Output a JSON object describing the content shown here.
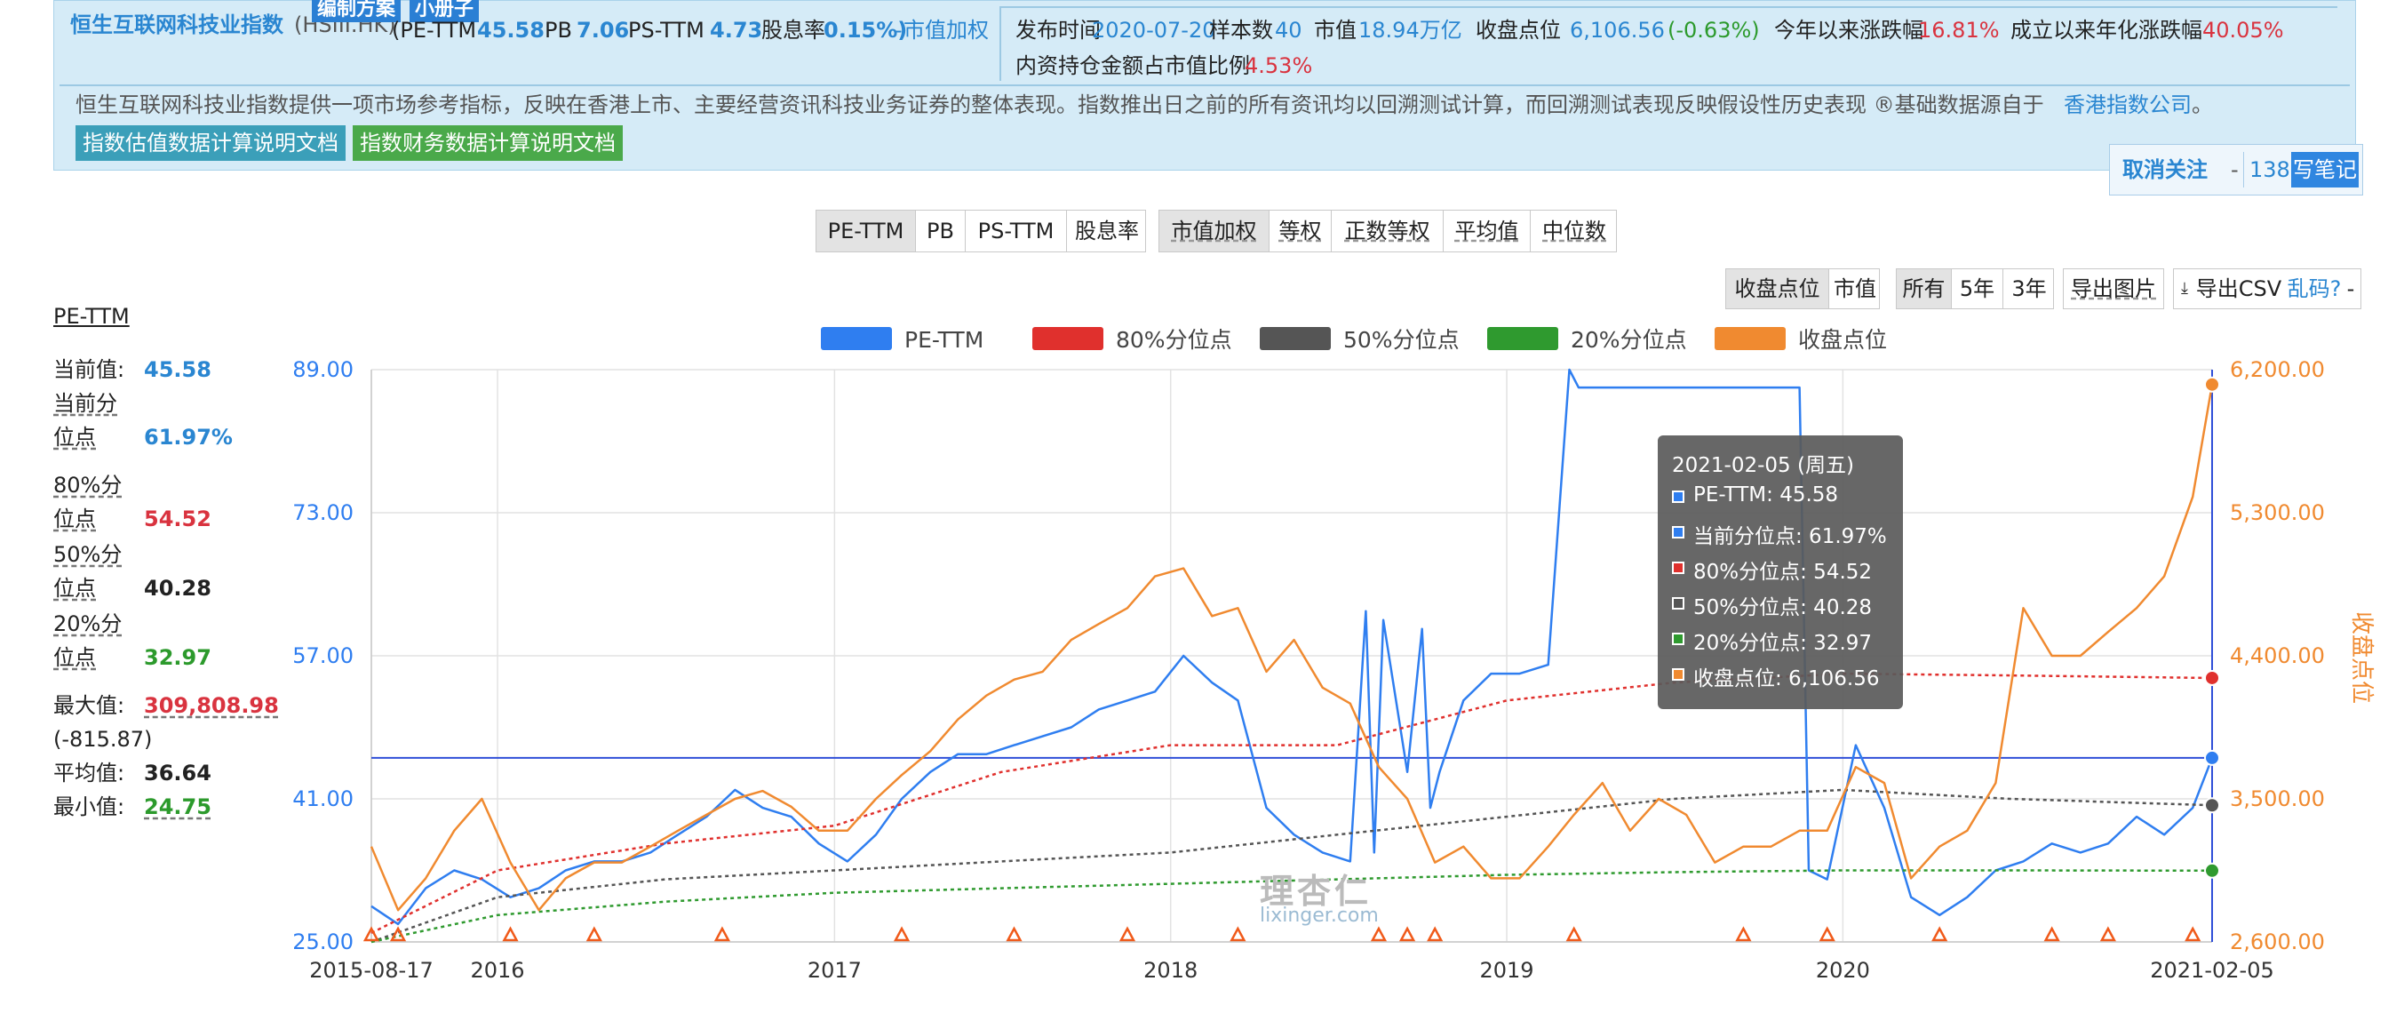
{
  "header": {
    "index_name": "恒生互联网科技业指数",
    "code": "(HSIII.HK)",
    "badge_plan": "编制方案",
    "badge_book": "小册子",
    "pe_label": "(PE-TTM",
    "pe_value": "45.58",
    "pb_label": "PB",
    "pb_value": "7.06",
    "ps_label": "PS-TTM",
    "ps_value": "4.73",
    "div_label": "股息率",
    "div_value": "0.15%)",
    "weight_sep": "-",
    "weight_link": "市值加权",
    "publish_label": "发布时间",
    "publish_value": "2020-07-20",
    "sample_label": "样本数",
    "sample_value": "40",
    "mcap_label": "市值",
    "mcap_value": "18.94万亿",
    "close_label": "收盘点位",
    "close_value": "6,106.56",
    "close_change": "(-0.63%)",
    "ytd_label": "今年以来涨跌幅",
    "ytd_value": "16.81%",
    "annual_label": "成立以来年化涨跌幅",
    "annual_value": "40.05%",
    "southbound_label": "内资持仓金额占市值比例",
    "southbound_value": "4.53%",
    "description": "恒生互联网科技业指数提供一项市场参考指标，反映在香港上市、主要经营资讯科技业务证券的整体表现。指数推出日之前的所有资讯均以回溯测试计算，而回溯测试表现反映假设性历史表现 ®基础数据源自于",
    "source_link": "香港指数公司",
    "source_end": "。",
    "doc_valuation": "指数估值数据计算说明文档",
    "doc_financial": "指数财务数据计算说明文档"
  },
  "actions": {
    "unfollow": "取消关注",
    "dash": "-",
    "count": "138",
    "write_note": "写笔记"
  },
  "metric_tabs": [
    "PE-TTM",
    "PB",
    "PS-TTM",
    "股息率"
  ],
  "weight_tabs": [
    "市值加权",
    "等权",
    "正数等权",
    "平均值",
    "中位数"
  ],
  "display_tabs": [
    "收盘点位",
    "市值"
  ],
  "range_tabs": [
    "所有",
    "5年",
    "3年"
  ],
  "export_image": "导出图片",
  "export_csv": "导出CSV",
  "garbled": "乱码?",
  "garbled_dash": "-",
  "stats": {
    "title": "PE-TTM",
    "current_label": "当前值:",
    "current_value": "45.58",
    "pct_label_1": "当前分",
    "pct_label_2": "位点",
    "pct_value": "61.97%",
    "p80_label_1": "80%分",
    "p80_label_2": "位点",
    "p80_value": "54.52",
    "p50_label_1": "50%分",
    "p50_label_2": "位点",
    "p50_value": "40.28",
    "p20_label_1": "20%分",
    "p20_label_2": "位点",
    "p20_value": "32.97",
    "max_label": "最大值:",
    "max_value": "309,808.98",
    "max_extra": "(-815.87)",
    "avg_label": "平均值:",
    "avg_value": "36.64",
    "min_label": "最小值:",
    "min_value": "24.75"
  },
  "tooltip": {
    "date": "2021-02-05 (周五)",
    "rows": [
      "PE-TTM: 45.58",
      "当前分位点: 61.97%",
      "80%分位点: 54.52",
      "50%分位点: 40.28",
      "20%分位点: 32.97",
      "收盘点位: 6,106.56"
    ],
    "colors": [
      "#2f7ef0",
      "#2f7ef0",
      "#e0302d",
      "#555555",
      "#2f9a2f",
      "#f08a30"
    ]
  },
  "watermark": {
    "cn": "理杏仁",
    "en": "lixinger.com"
  },
  "chart_data": {
    "type": "line",
    "legend_position": "top",
    "grid": true,
    "x_ticks": [
      "2015-08-17",
      "2016",
      "2017",
      "2018",
      "2019",
      "2020",
      "2021-02-05"
    ],
    "x_range": [
      "2015-08-17",
      "2021-02-05"
    ],
    "y_left": {
      "ticks": [
        "25.00",
        "41.00",
        "57.00",
        "73.00",
        "89.00"
      ],
      "range": [
        25,
        89
      ]
    },
    "y_right": {
      "ticks": [
        "2,600.00",
        "3,500.00",
        "4,400.00",
        "5,300.00",
        "6,200.00"
      ],
      "range": [
        2600,
        6200
      ],
      "label": "收盘点位"
    },
    "series": [
      {
        "name": "PE-TTM",
        "axis": "left",
        "color": "#2f7ef0",
        "x": [
          "2015-08-17",
          "2015-09-15",
          "2015-10-15",
          "2015-11-15",
          "2015-12-15",
          "2016-01-15",
          "2016-02-15",
          "2016-03-15",
          "2016-04-15",
          "2016-05-15",
          "2016-06-15",
          "2016-07-15",
          "2016-08-15",
          "2016-09-15",
          "2016-10-15",
          "2016-11-15",
          "2016-12-15",
          "2017-01-15",
          "2017-02-15",
          "2017-03-15",
          "2017-04-15",
          "2017-05-15",
          "2017-06-15",
          "2017-07-15",
          "2017-08-15",
          "2017-09-15",
          "2017-10-15",
          "2017-11-15",
          "2017-12-15",
          "2018-01-15",
          "2018-02-15",
          "2018-03-15",
          "2018-04-15",
          "2018-05-15",
          "2018-06-15",
          "2018-07-15",
          "2018-08-01",
          "2018-08-10",
          "2018-08-20",
          "2018-09-15",
          "2018-10-01",
          "2018-10-10",
          "2018-10-20",
          "2018-11-15",
          "2018-12-15",
          "2019-01-15",
          "2019-02-15",
          "2019-03-10",
          "2019-03-20",
          "2019-04-15",
          "2019-05-15",
          "2019-06-15",
          "2019-07-15",
          "2019-08-15",
          "2019-09-15",
          "2019-10-15",
          "2019-11-15",
          "2019-11-25",
          "2019-12-15",
          "2020-01-15",
          "2020-02-15",
          "2020-03-15",
          "2020-04-15",
          "2020-05-15",
          "2020-06-15",
          "2020-07-15",
          "2020-08-15",
          "2020-09-15",
          "2020-10-15",
          "2020-11-15",
          "2020-12-15",
          "2021-01-15",
          "2021-02-05"
        ],
        "values": [
          29,
          27,
          31,
          33,
          32,
          30,
          31,
          33,
          34,
          34,
          35,
          37,
          39,
          42,
          40,
          39,
          36,
          34,
          37,
          41,
          44,
          46,
          46,
          47,
          48,
          49,
          51,
          52,
          53,
          57,
          54,
          52,
          40,
          37,
          35,
          34,
          62,
          35,
          61,
          44,
          60,
          40,
          44,
          52,
          55,
          55,
          56,
          89,
          87,
          87,
          87,
          87,
          87,
          87,
          87,
          87,
          87,
          33,
          32,
          47,
          40,
          30,
          28,
          30,
          33,
          34,
          36,
          35,
          36,
          39,
          37,
          40,
          45.58
        ]
      },
      {
        "name": "80%分位点",
        "axis": "left",
        "color": "#e0302d",
        "x": [
          "2015-08-17",
          "2016-01-01",
          "2016-07-01",
          "2017-01-01",
          "2017-07-01",
          "2018-01-01",
          "2018-07-01",
          "2019-01-01",
          "2019-07-01",
          "2020-01-01",
          "2020-07-01",
          "2021-02-05"
        ],
        "values": [
          26,
          33,
          36,
          38,
          44,
          47,
          47,
          52,
          54,
          55,
          54.8,
          54.52
        ]
      },
      {
        "name": "50%分位点",
        "axis": "left",
        "color": "#555555",
        "x": [
          "2015-08-17",
          "2016-01-01",
          "2016-07-01",
          "2017-01-01",
          "2017-07-01",
          "2018-01-01",
          "2018-07-01",
          "2019-01-01",
          "2019-07-01",
          "2020-01-01",
          "2020-07-01",
          "2021-02-05"
        ],
        "values": [
          25,
          30,
          32,
          33,
          34,
          35,
          37,
          39,
          41,
          42,
          41,
          40.28
        ]
      },
      {
        "name": "20%分位点",
        "axis": "left",
        "color": "#2f9a2f",
        "x": [
          "2015-08-17",
          "2016-01-01",
          "2016-07-01",
          "2017-01-01",
          "2017-07-01",
          "2018-01-01",
          "2018-07-01",
          "2019-01-01",
          "2019-07-01",
          "2020-01-01",
          "2020-07-01",
          "2021-02-05"
        ],
        "values": [
          25,
          28,
          29.5,
          30.5,
          31,
          31.5,
          32,
          32.5,
          32.8,
          33,
          33,
          32.97
        ]
      },
      {
        "name": "收盘点位",
        "axis": "right",
        "color": "#f08a30",
        "x": [
          "2015-08-17",
          "2015-09-15",
          "2015-10-15",
          "2015-11-15",
          "2015-12-15",
          "2016-01-15",
          "2016-02-15",
          "2016-03-15",
          "2016-04-15",
          "2016-05-15",
          "2016-06-15",
          "2016-07-15",
          "2016-08-15",
          "2016-09-15",
          "2016-10-15",
          "2016-11-15",
          "2016-12-15",
          "2017-01-15",
          "2017-02-15",
          "2017-03-15",
          "2017-04-15",
          "2017-05-15",
          "2017-06-15",
          "2017-07-15",
          "2017-08-15",
          "2017-09-15",
          "2017-10-15",
          "2017-11-15",
          "2017-12-15",
          "2018-01-15",
          "2018-02-15",
          "2018-03-15",
          "2018-04-15",
          "2018-05-15",
          "2018-06-15",
          "2018-07-15",
          "2018-08-15",
          "2018-09-15",
          "2018-10-15",
          "2018-11-15",
          "2018-12-15",
          "2019-01-15",
          "2019-02-15",
          "2019-03-15",
          "2019-04-15",
          "2019-05-15",
          "2019-06-15",
          "2019-07-15",
          "2019-08-15",
          "2019-09-15",
          "2019-10-15",
          "2019-11-15",
          "2019-12-15",
          "2020-01-15",
          "2020-02-15",
          "2020-03-15",
          "2020-04-15",
          "2020-05-15",
          "2020-06-15",
          "2020-07-15",
          "2020-08-15",
          "2020-09-15",
          "2020-10-15",
          "2020-11-15",
          "2020-12-15",
          "2021-01-15",
          "2021-02-05"
        ],
        "values": [
          3200,
          2800,
          3000,
          3300,
          3500,
          3100,
          2800,
          3000,
          3100,
          3100,
          3200,
          3300,
          3400,
          3500,
          3550,
          3450,
          3300,
          3300,
          3500,
          3650,
          3800,
          4000,
          4150,
          4250,
          4300,
          4500,
          4600,
          4700,
          4900,
          4950,
          4650,
          4700,
          4300,
          4500,
          4200,
          4100,
          3700,
          3500,
          3100,
          3200,
          3000,
          3000,
          3200,
          3400,
          3600,
          3300,
          3500,
          3400,
          3100,
          3200,
          3200,
          3300,
          3300,
          3700,
          3600,
          3000,
          3200,
          3300,
          3600,
          4700,
          4400,
          4400,
          4550,
          4700,
          4900,
          5400,
          6106.56
        ]
      }
    ],
    "horizontal_marker": {
      "axis": "left",
      "value": 45.58,
      "color": "#2f4fd8"
    },
    "cursor_x": "2021-02-05",
    "event_markers_x": [
      "2015-08-17",
      "2015-09-15",
      "2016-01-15",
      "2016-04-15",
      "2016-09-01",
      "2017-03-15",
      "2017-07-15",
      "2017-11-15",
      "2018-03-15",
      "2018-08-15",
      "2018-09-15",
      "2018-10-15",
      "2019-03-15",
      "2019-09-15",
      "2019-12-15",
      "2020-04-15",
      "2020-08-15",
      "2020-10-15",
      "2021-01-15"
    ]
  }
}
